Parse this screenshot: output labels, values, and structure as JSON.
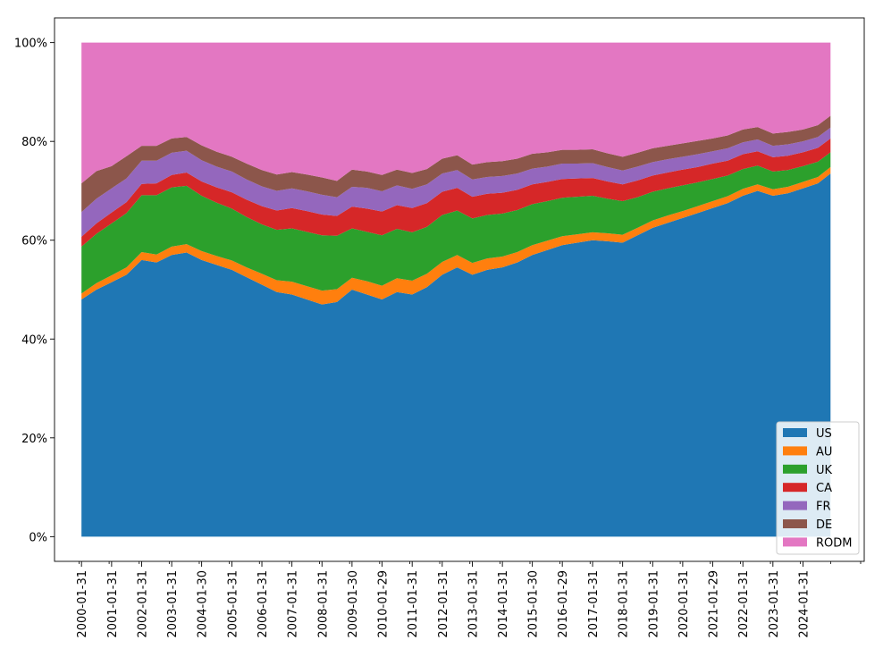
{
  "chart_data": {
    "type": "area",
    "stacked": true,
    "normalized": true,
    "title": "",
    "xlabel": "",
    "ylabel": "",
    "ylim": [
      0,
      1
    ],
    "y_ticks": [
      {
        "value": 0,
        "label": "0%"
      },
      {
        "value": 0.2,
        "label": "20%"
      },
      {
        "value": 0.4,
        "label": "40%"
      },
      {
        "value": 0.6,
        "label": "60%"
      },
      {
        "value": 0.8,
        "label": "80%"
      },
      {
        "value": 1.0,
        "label": "100%"
      }
    ],
    "x_ticks": [
      "2000-01-31",
      "2001-01-31",
      "2002-01-31",
      "2003-01-31",
      "2004-01-30",
      "2005-01-31",
      "2006-01-31",
      "2007-01-31",
      "2008-01-31",
      "2009-01-30",
      "2010-01-29",
      "2011-01-31",
      "2012-01-31",
      "2013-01-31",
      "2014-01-31",
      "2015-01-30",
      "2016-01-29",
      "2017-01-31",
      "2018-01-31",
      "2019-01-31",
      "2020-01-31",
      "2021-01-29",
      "2022-01-31",
      "2023-01-31",
      "2024-01-31"
    ],
    "x_range": [
      "2000-01-31",
      "2024-12-31"
    ],
    "legend_position": "lower-right",
    "x": [
      "2000-01-31",
      "2000-07-31",
      "2001-01-31",
      "2001-07-31",
      "2002-01-31",
      "2002-07-31",
      "2003-01-31",
      "2003-07-31",
      "2004-01-30",
      "2004-07-30",
      "2005-01-31",
      "2005-07-29",
      "2006-01-31",
      "2006-07-31",
      "2007-01-31",
      "2007-07-31",
      "2008-01-31",
      "2008-07-31",
      "2009-01-30",
      "2009-07-31",
      "2010-01-29",
      "2010-07-30",
      "2011-01-31",
      "2011-07-29",
      "2012-01-31",
      "2012-07-31",
      "2013-01-31",
      "2013-07-31",
      "2014-01-31",
      "2014-07-31",
      "2015-01-30",
      "2015-07-31",
      "2016-01-29",
      "2016-07-29",
      "2017-01-31",
      "2017-07-31",
      "2018-01-31",
      "2018-07-31",
      "2019-01-31",
      "2019-07-31",
      "2020-01-31",
      "2020-07-31",
      "2021-01-29",
      "2021-07-30",
      "2022-01-31",
      "2022-07-29",
      "2023-01-31",
      "2023-07-31",
      "2024-01-31",
      "2024-07-31",
      "2024-12-31"
    ],
    "series": [
      {
        "name": "US",
        "color": "#1f77b4",
        "values": [
          0.48,
          0.5,
          0.515,
          0.53,
          0.56,
          0.555,
          0.57,
          0.575,
          0.56,
          0.55,
          0.54,
          0.525,
          0.51,
          0.495,
          0.49,
          0.48,
          0.47,
          0.475,
          0.5,
          0.49,
          0.48,
          0.495,
          0.49,
          0.505,
          0.53,
          0.545,
          0.53,
          0.54,
          0.545,
          0.555,
          0.57,
          0.58,
          0.59,
          0.595,
          0.6,
          0.598,
          0.595,
          0.61,
          0.625,
          0.635,
          0.645,
          0.655,
          0.665,
          0.675,
          0.69,
          0.7,
          0.69,
          0.695,
          0.705,
          0.715,
          0.735
        ]
      },
      {
        "name": "AU",
        "color": "#ff7f0e",
        "values": [
          0.012,
          0.013,
          0.014,
          0.015,
          0.016,
          0.016,
          0.017,
          0.017,
          0.018,
          0.018,
          0.019,
          0.02,
          0.022,
          0.024,
          0.026,
          0.027,
          0.028,
          0.026,
          0.024,
          0.027,
          0.028,
          0.028,
          0.028,
          0.027,
          0.026,
          0.025,
          0.024,
          0.023,
          0.022,
          0.021,
          0.02,
          0.019,
          0.018,
          0.017,
          0.016,
          0.016,
          0.016,
          0.015,
          0.015,
          0.015,
          0.014,
          0.014,
          0.014,
          0.014,
          0.014,
          0.013,
          0.013,
          0.013,
          0.013,
          0.013,
          0.013
        ]
      },
      {
        "name": "UK",
        "color": "#2ca02c",
        "values": [
          0.095,
          0.1,
          0.105,
          0.11,
          0.115,
          0.12,
          0.12,
          0.118,
          0.112,
          0.108,
          0.105,
          0.102,
          0.1,
          0.102,
          0.108,
          0.11,
          0.112,
          0.108,
          0.1,
          0.1,
          0.102,
          0.1,
          0.098,
          0.095,
          0.095,
          0.09,
          0.09,
          0.088,
          0.087,
          0.085,
          0.083,
          0.08,
          0.078,
          0.076,
          0.074,
          0.07,
          0.068,
          0.062,
          0.058,
          0.055,
          0.052,
          0.048,
          0.045,
          0.042,
          0.04,
          0.038,
          0.036,
          0.034,
          0.032,
          0.031,
          0.03
        ]
      },
      {
        "name": "CA",
        "color": "#d62728",
        "values": [
          0.02,
          0.021,
          0.022,
          0.022,
          0.023,
          0.024,
          0.025,
          0.027,
          0.029,
          0.031,
          0.033,
          0.035,
          0.037,
          0.039,
          0.041,
          0.042,
          0.042,
          0.04,
          0.044,
          0.047,
          0.048,
          0.048,
          0.049,
          0.048,
          0.047,
          0.046,
          0.044,
          0.043,
          0.042,
          0.041,
          0.04,
          0.039,
          0.038,
          0.037,
          0.036,
          0.035,
          0.034,
          0.034,
          0.033,
          0.032,
          0.032,
          0.031,
          0.031,
          0.03,
          0.03,
          0.029,
          0.029,
          0.029,
          0.028,
          0.028,
          0.028
        ]
      },
      {
        "name": "FR",
        "color": "#9467bd",
        "values": [
          0.05,
          0.05,
          0.049,
          0.048,
          0.047,
          0.046,
          0.045,
          0.044,
          0.043,
          0.042,
          0.042,
          0.041,
          0.04,
          0.04,
          0.04,
          0.04,
          0.04,
          0.038,
          0.04,
          0.042,
          0.041,
          0.04,
          0.039,
          0.038,
          0.037,
          0.036,
          0.035,
          0.034,
          0.034,
          0.033,
          0.032,
          0.031,
          0.031,
          0.03,
          0.03,
          0.029,
          0.028,
          0.028,
          0.027,
          0.027,
          0.026,
          0.026,
          0.025,
          0.025,
          0.024,
          0.024,
          0.023,
          0.023,
          0.022,
          0.022,
          0.022
        ]
      },
      {
        "name": "DE",
        "color": "#8c564b",
        "values": [
          0.058,
          0.056,
          0.045,
          0.045,
          0.03,
          0.03,
          0.029,
          0.028,
          0.03,
          0.03,
          0.03,
          0.032,
          0.033,
          0.033,
          0.033,
          0.034,
          0.035,
          0.033,
          0.035,
          0.033,
          0.033,
          0.032,
          0.032,
          0.031,
          0.03,
          0.03,
          0.03,
          0.03,
          0.03,
          0.03,
          0.03,
          0.029,
          0.028,
          0.028,
          0.028,
          0.028,
          0.028,
          0.028,
          0.028,
          0.027,
          0.027,
          0.027,
          0.026,
          0.026,
          0.026,
          0.025,
          0.025,
          0.025,
          0.024,
          0.024,
          0.024
        ]
      },
      {
        "name": "RODM",
        "color": "#e377c2",
        "values": [
          0.285,
          0.26,
          0.25,
          0.23,
          0.209,
          0.209,
          0.194,
          0.191,
          0.208,
          0.221,
          0.231,
          0.245,
          0.258,
          0.267,
          0.262,
          0.267,
          0.273,
          0.28,
          0.257,
          0.261,
          0.268,
          0.257,
          0.264,
          0.256,
          0.235,
          0.228,
          0.247,
          0.242,
          0.24,
          0.235,
          0.225,
          0.222,
          0.217,
          0.217,
          0.216,
          0.224,
          0.231,
          0.223,
          0.214,
          0.209,
          0.204,
          0.199,
          0.194,
          0.188,
          0.176,
          0.171,
          0.184,
          0.181,
          0.176,
          0.167,
          0.148
        ]
      }
    ]
  }
}
